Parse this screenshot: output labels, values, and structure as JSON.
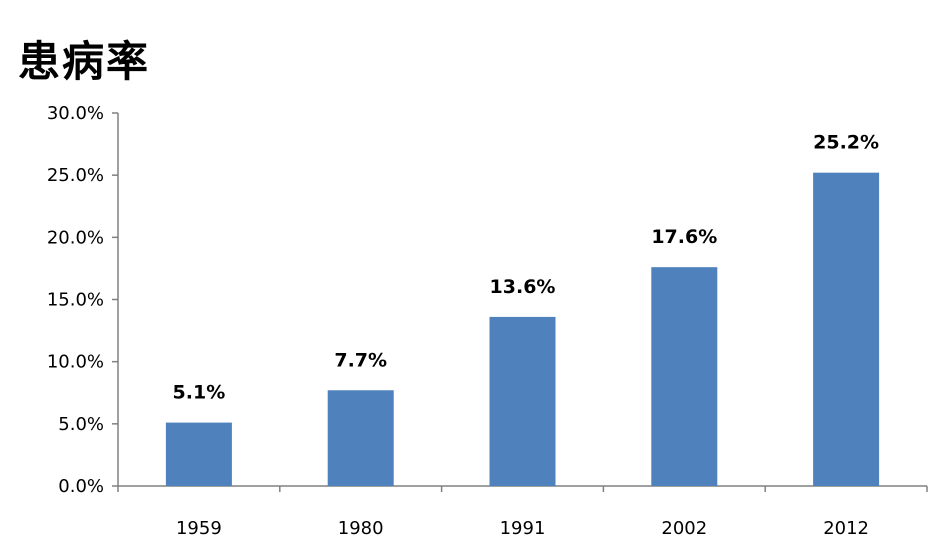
{
  "chart_data": {
    "type": "bar",
    "title": "患病率",
    "xlabel": "",
    "ylabel": "",
    "categories": [
      "1959",
      "1980",
      "1991",
      "2002",
      "2012"
    ],
    "values": [
      5.1,
      7.7,
      13.6,
      17.6,
      25.2
    ],
    "data_labels": [
      "5.1%",
      "7.7%",
      "13.6%",
      "17.6%",
      "25.2%"
    ],
    "ylim": [
      0,
      30
    ],
    "y_ticks": [
      0,
      5,
      10,
      15,
      20,
      25,
      30
    ],
    "y_tick_labels": [
      "0.0%",
      "5.0%",
      "10.0%",
      "15.0%",
      "20.0%",
      "25.0%",
      "30.0%"
    ],
    "grid": false,
    "legend": "none",
    "colors": {
      "bar": "#4f81bd",
      "axis": "#808080"
    }
  }
}
